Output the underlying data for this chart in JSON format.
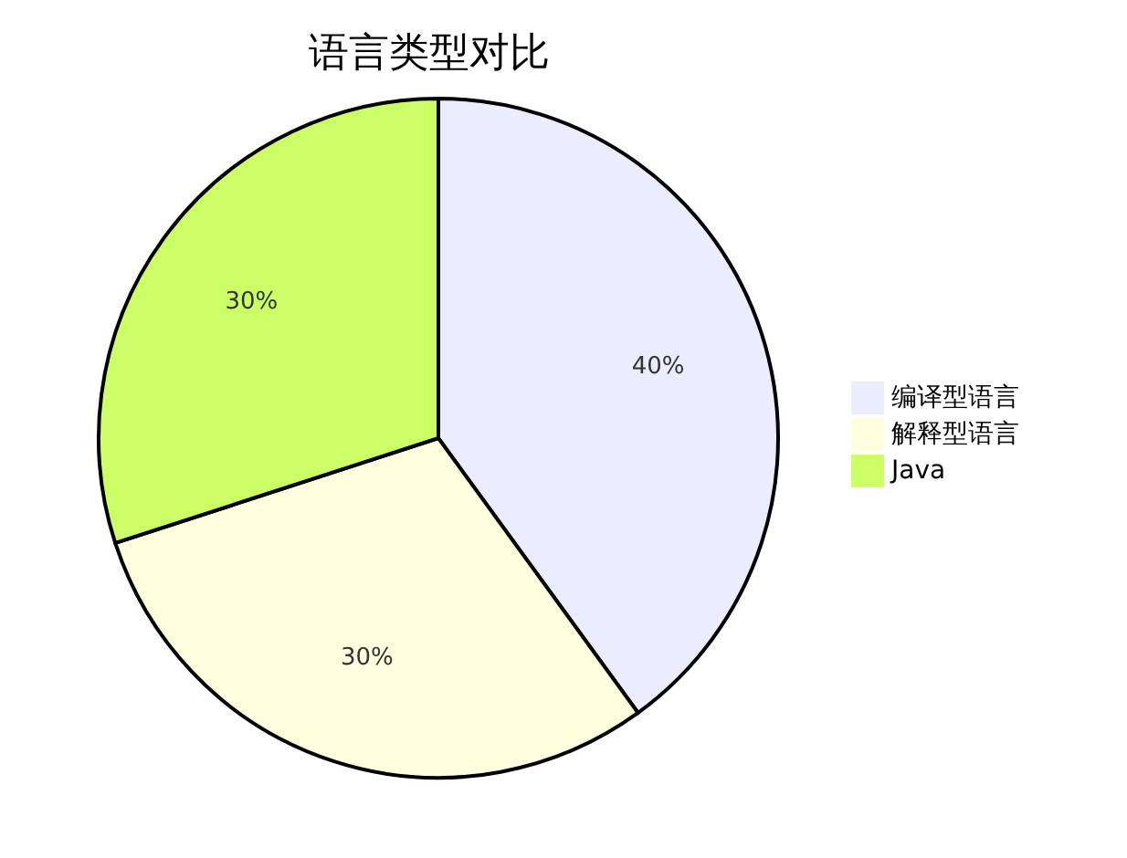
{
  "chart_data": {
    "type": "pie",
    "title": "语言类型对比",
    "categories": [
      "编译型语言",
      "解释型语言",
      "Java"
    ],
    "values": [
      40,
      30,
      30
    ],
    "value_labels": [
      "40%",
      "30%",
      "30%"
    ],
    "colors": [
      "#ececff",
      "#ffffe0",
      "#ccff66"
    ],
    "legend": "right"
  }
}
